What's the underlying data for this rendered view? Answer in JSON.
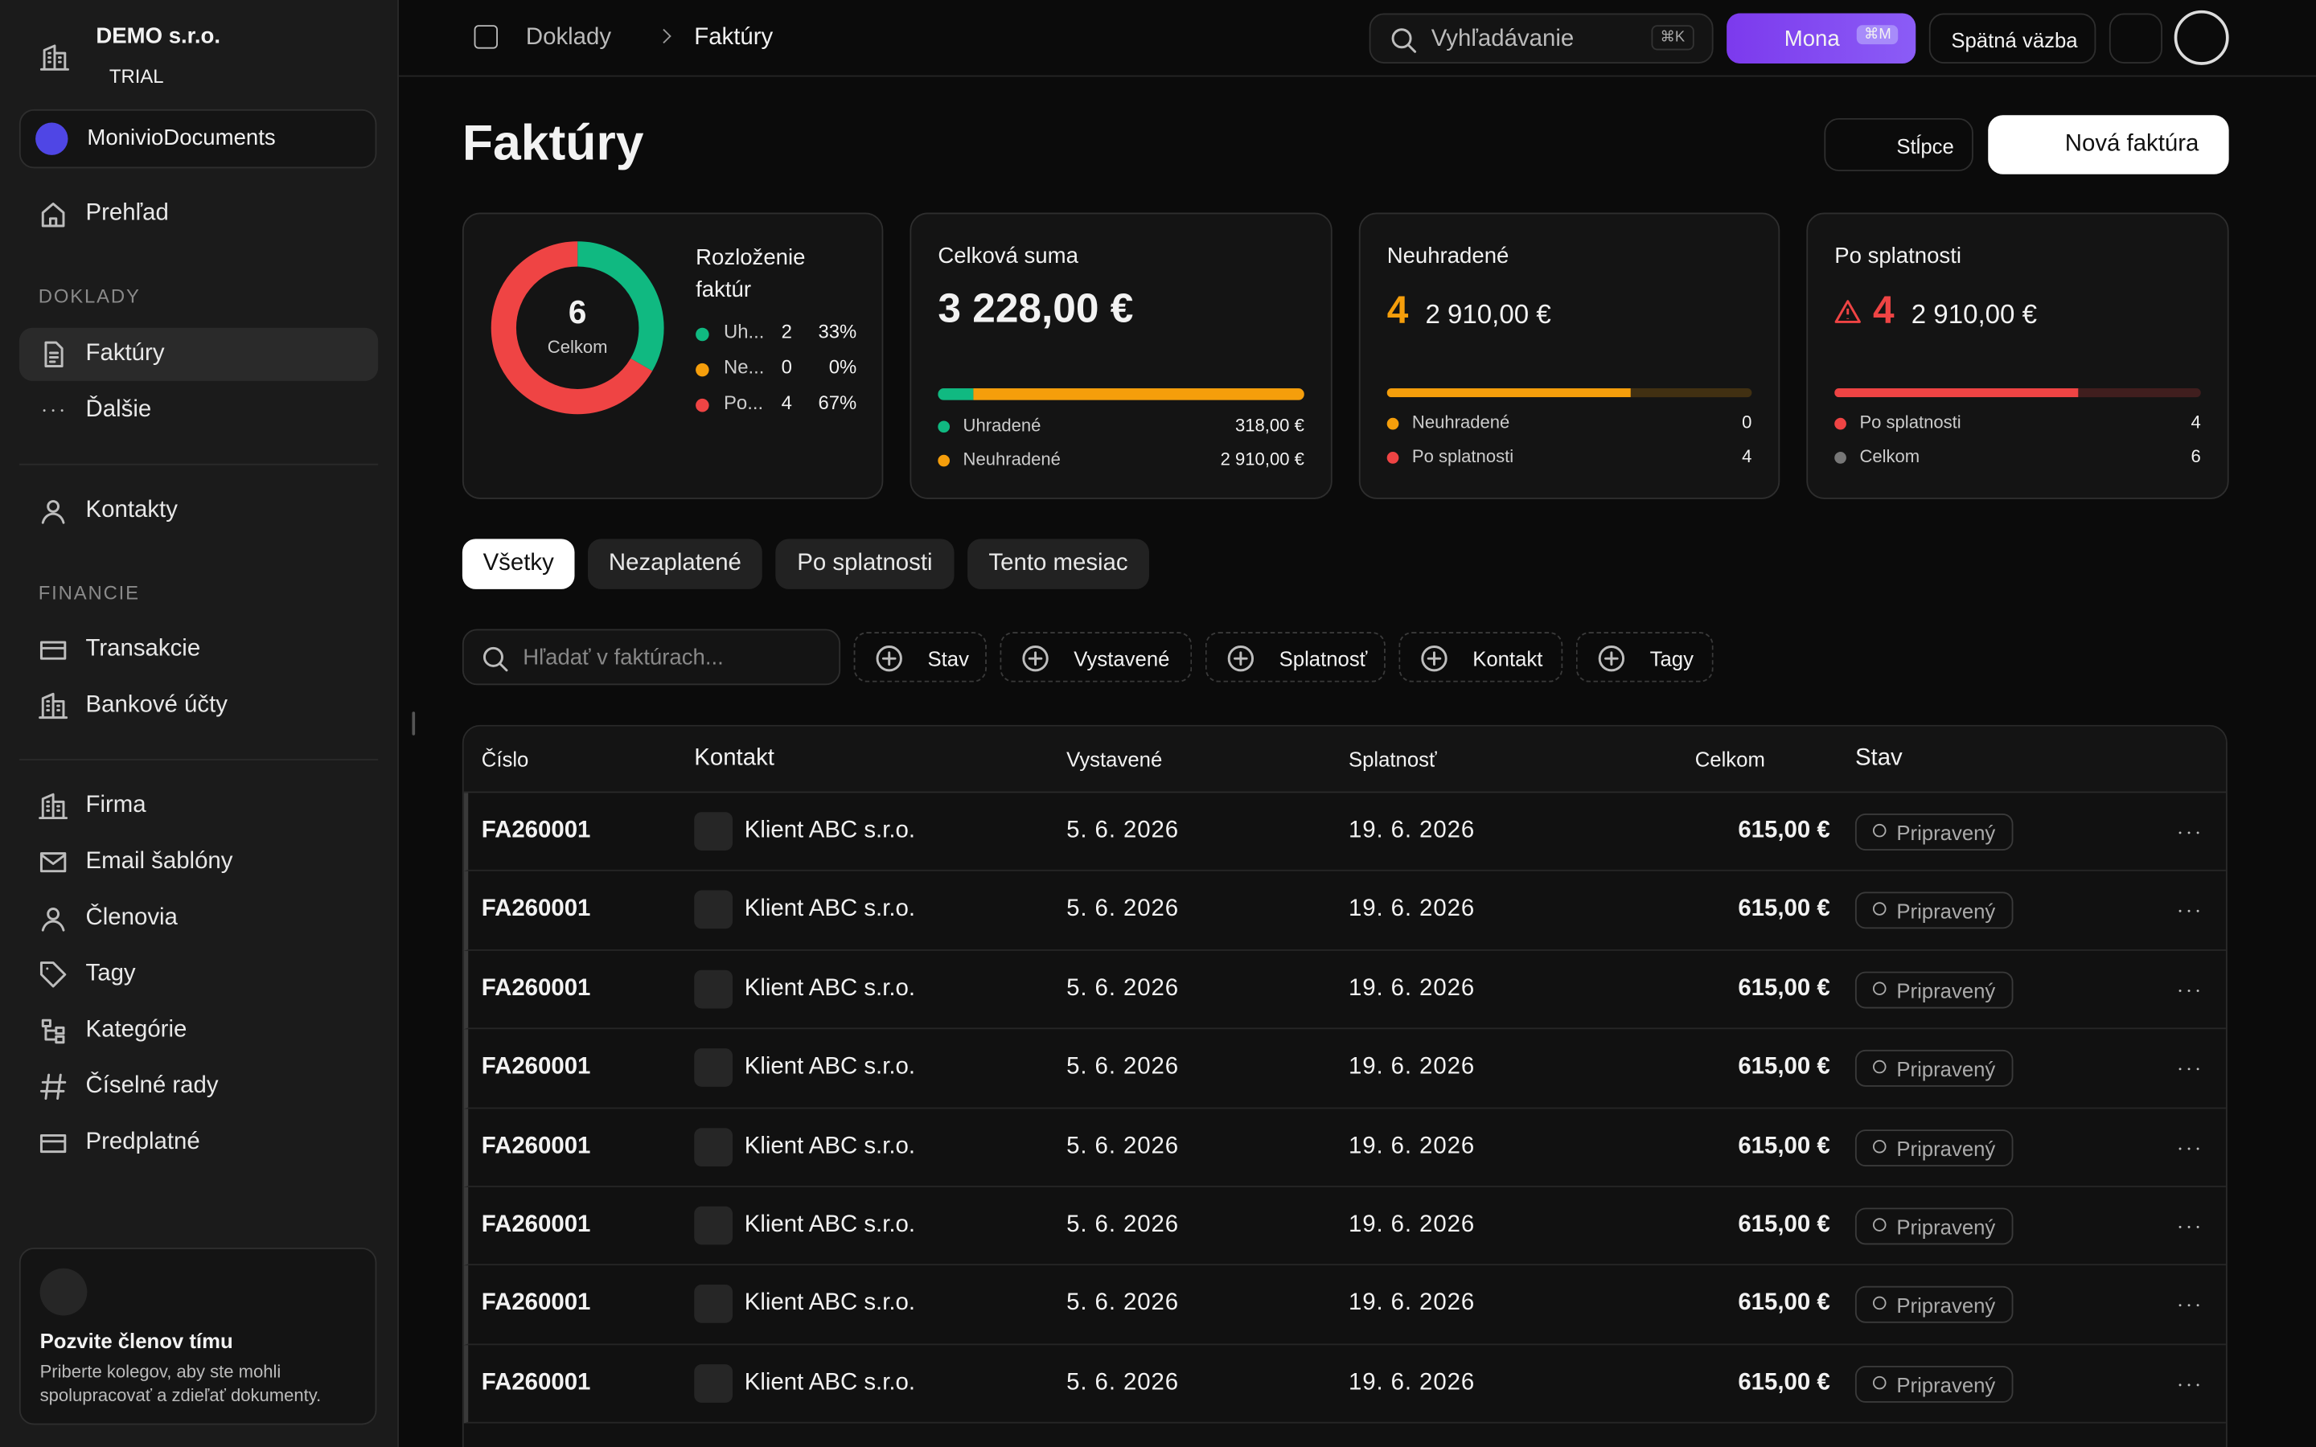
{
  "sidebar": {
    "company": "DEMO s.r.o.",
    "plan": "TRIAL",
    "workspace": "MonivioDocuments",
    "home": "Prehľad",
    "sections": [
      {
        "title": "DOKLADY",
        "items": [
          "Faktúry",
          "Ďalšie"
        ]
      },
      {
        "title": "FINANCIE",
        "items": [
          "Transakcie",
          "Bankové účty"
        ]
      }
    ],
    "contacts": "Kontakty",
    "settings": [
      "Firma",
      "Email šablóny",
      "Členovia",
      "Tagy",
      "Kategórie",
      "Číselné rady",
      "Predplatné"
    ],
    "invite": {
      "title": "Pozvite členov tímu",
      "text": "Priberte kolegov, aby ste mohli spolupracovať a zdieľať dokumenty."
    }
  },
  "topbar": {
    "breadcrumb": [
      "Doklady",
      "Faktúry"
    ],
    "search": "Vyhľadávanie",
    "search_shortcut": "⌘K",
    "assistant": "Mona",
    "assistant_shortcut": "⌘M",
    "feedback": "Spätná väzba"
  },
  "page": {
    "title": "Faktúry",
    "columns_button": "Stĺpce",
    "new_button": "Nová faktúra"
  },
  "cards": {
    "distribution": {
      "title": "Rozloženie faktúr",
      "total": 6,
      "total_label": "Celkom",
      "items": [
        {
          "name": "Uh...",
          "count": 2,
          "percent": "33%",
          "color": "#10b981"
        },
        {
          "name": "Ne...",
          "count": 0,
          "percent": "0%",
          "color": "#f59e0b"
        },
        {
          "name": "Po...",
          "count": 4,
          "percent": "67%",
          "color": "#ef4444"
        }
      ]
    },
    "sum": {
      "title": "Celková suma",
      "amount": "3 228,00 €",
      "rows": [
        {
          "name": "Uhradené",
          "amount": "318,00 €",
          "value": 318,
          "color": "#10b981"
        },
        {
          "name": "Neuhradené",
          "amount": "2 910,00 €",
          "value": 2910,
          "color": "#f59e0b"
        }
      ]
    },
    "unpaid": {
      "title": "Neuhradené",
      "count": 4,
      "amount": "2 910,00 €",
      "color": "#f59e0b",
      "rows": [
        {
          "name": "Neuhradené",
          "count": 0,
          "color": "#f59e0b"
        },
        {
          "name": "Po splatnosti",
          "count": 4,
          "color": "#ef4444"
        }
      ]
    },
    "overdue": {
      "title": "Po splatnosti",
      "count": 4,
      "amount": "2 910,00 €",
      "color": "#ef4444",
      "rows": [
        {
          "name": "Po splatnosti",
          "count": 4,
          "color": "#ef4444"
        },
        {
          "name": "Celkom",
          "count": 6,
          "color": "#777777"
        }
      ]
    }
  },
  "tabs": [
    "Všetky",
    "Nezaplatené",
    "Po splatnosti",
    "Tento mesiac"
  ],
  "filter_placeholder": "Hľadať v faktúrach...",
  "filters": [
    "Stav",
    "Vystavené",
    "Splatnosť",
    "Kontakt",
    "Tagy"
  ],
  "table": {
    "columns": [
      "Číslo",
      "Kontakt",
      "Vystavené",
      "Splatnosť",
      "Celkom",
      "Stav"
    ],
    "rows": [
      [
        "FA260001",
        "Klient ABC s.r.o.",
        "5. 6. 2026",
        "19. 6. 2026",
        "615,00 €",
        "Pripravený"
      ],
      [
        "FA260001",
        "Klient ABC s.r.o.",
        "5. 6. 2026",
        "19. 6. 2026",
        "615,00 €",
        "Pripravený"
      ],
      [
        "FA260001",
        "Klient ABC s.r.o.",
        "5. 6. 2026",
        "19. 6. 2026",
        "615,00 €",
        "Pripravený"
      ],
      [
        "FA260001",
        "Klient ABC s.r.o.",
        "5. 6. 2026",
        "19. 6. 2026",
        "615,00 €",
        "Pripravený"
      ],
      [
        "FA260001",
        "Klient ABC s.r.o.",
        "5. 6. 2026",
        "19. 6. 2026",
        "615,00 €",
        "Pripravený"
      ],
      [
        "FA260001",
        "Klient ABC s.r.o.",
        "5. 6. 2026",
        "19. 6. 2026",
        "615,00 €",
        "Pripravený"
      ],
      [
        "FA260001",
        "Klient ABC s.r.o.",
        "5. 6. 2026",
        "19. 6. 2026",
        "615,00 €",
        "Pripravený"
      ],
      [
        "FA260001",
        "Klient ABC s.r.o.",
        "5. 6. 2026",
        "19. 6. 2026",
        "615,00 €",
        "Pripravený"
      ]
    ]
  }
}
